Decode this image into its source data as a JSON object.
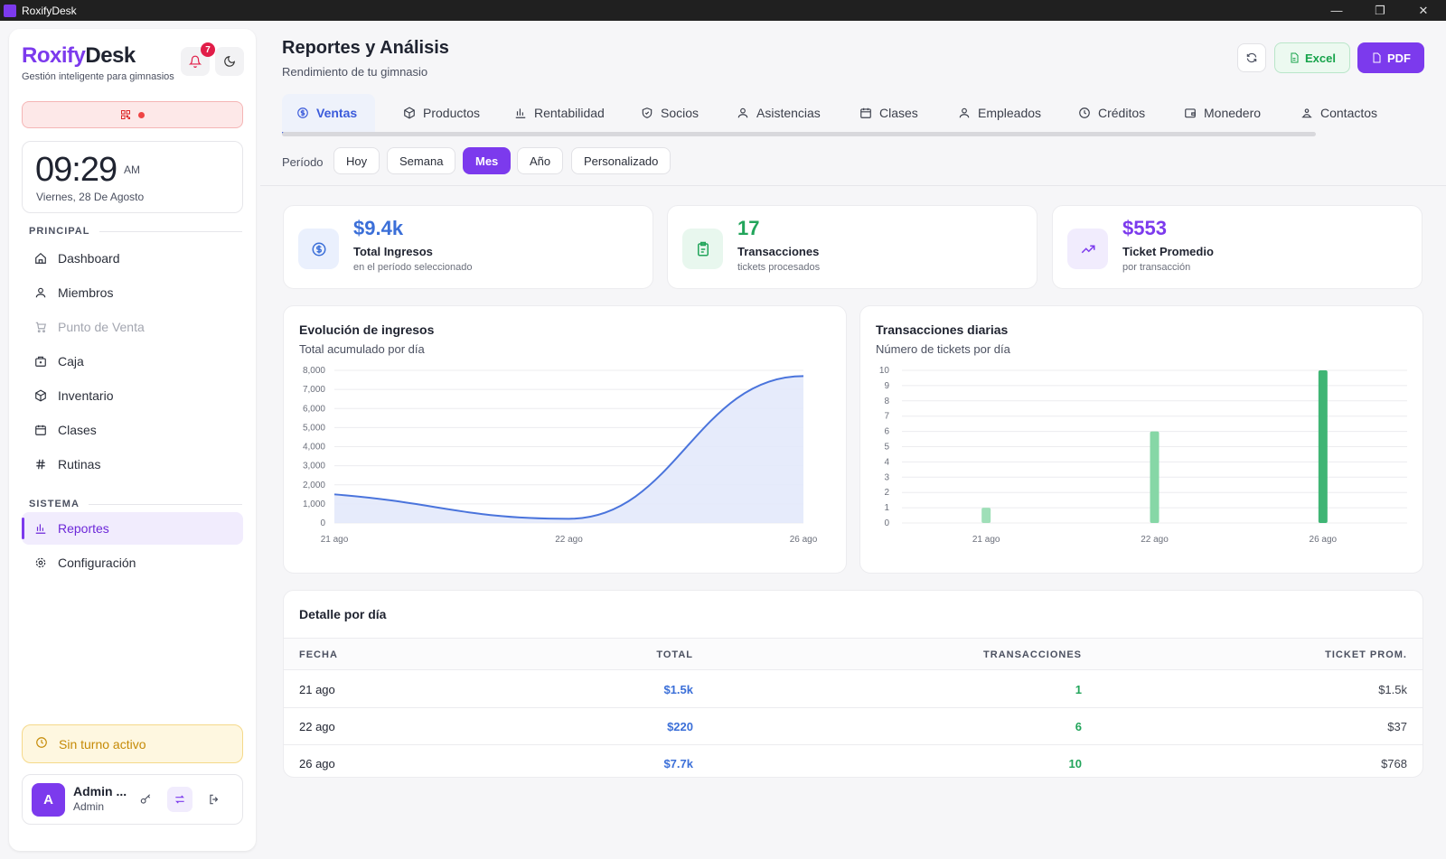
{
  "window": {
    "title": "RoxifyDesk",
    "controls": [
      "—",
      "❐",
      "✕"
    ]
  },
  "sidebar": {
    "brand_part1": "Roxify",
    "brand_part2": "Desk",
    "tagline": "Gestión inteligente para gimnasios",
    "notification_count": "7",
    "clock": {
      "time": "09:29",
      "ampm": "AM",
      "date": "Viernes, 28 De Agosto"
    },
    "section_principal": "PRINCIPAL",
    "section_sistema": "SISTEMA",
    "items": [
      {
        "label": "Dashboard",
        "icon": "home-icon"
      },
      {
        "label": "Miembros",
        "icon": "users-icon"
      },
      {
        "label": "Punto de Venta",
        "icon": "cart-icon"
      },
      {
        "label": "Caja",
        "icon": "cashbox-icon"
      },
      {
        "label": "Inventario",
        "icon": "box-icon"
      },
      {
        "label": "Clases",
        "icon": "calendar-icon"
      },
      {
        "label": "Rutinas",
        "icon": "hash-icon"
      },
      {
        "label": "Reportes",
        "icon": "chart-icon"
      },
      {
        "label": "Configuración",
        "icon": "gear-icon"
      }
    ],
    "shift_status": "Sin turno activo",
    "user": {
      "initial": "A",
      "name": "Admin ...",
      "role": "Admin"
    }
  },
  "header": {
    "title": "Reportes y Análisis",
    "subtitle": "Rendimiento de tu gimnasio",
    "excel_label": "Excel",
    "pdf_label": "PDF"
  },
  "tabs": [
    {
      "label": "Ventas",
      "icon": "dollar-icon"
    },
    {
      "label": "Productos",
      "icon": "box-icon"
    },
    {
      "label": "Rentabilidad",
      "icon": "bar-chart-icon"
    },
    {
      "label": "Socios",
      "icon": "shield-icon"
    },
    {
      "label": "Asistencias",
      "icon": "users-icon"
    },
    {
      "label": "Clases",
      "icon": "calendar-icon"
    },
    {
      "label": "Empleados",
      "icon": "users-icon"
    },
    {
      "label": "Créditos",
      "icon": "clock-icon"
    },
    {
      "label": "Monedero",
      "icon": "wallet-icon"
    },
    {
      "label": "Contactos",
      "icon": "contacts-icon"
    }
  ],
  "period": {
    "label": "Período",
    "options": [
      "Hoy",
      "Semana",
      "Mes",
      "Año",
      "Personalizado"
    ],
    "selected": "Mes"
  },
  "kpis": [
    {
      "value": "$9.4k",
      "label": "Total Ingresos",
      "desc": "en el período seleccionado",
      "color": "#3b6fd8",
      "bg": "#eaf0fd",
      "icon": "dollar-icon"
    },
    {
      "value": "17",
      "label": "Transacciones",
      "desc": "tickets procesados",
      "color": "#22a55b",
      "bg": "#e8f7ee",
      "icon": "clipboard-icon"
    },
    {
      "value": "$553",
      "label": "Ticket Promedio",
      "desc": "por transacción",
      "color": "#7c3aed",
      "bg": "#f1ecfd",
      "icon": "trending-up-icon"
    }
  ],
  "charts": {
    "income": {
      "title": "Evolución de ingresos",
      "subtitle": "Total acumulado por día"
    },
    "transactions": {
      "title": "Transacciones diarias",
      "subtitle": "Número de tickets por día"
    }
  },
  "chart_data": [
    {
      "type": "area",
      "title": "Evolución de ingresos",
      "x": [
        "21 ago",
        "22 ago",
        "26 ago"
      ],
      "y": [
        1500,
        220,
        7700
      ],
      "yticks": [
        "0",
        "1,000",
        "2,000",
        "3,000",
        "4,000",
        "5,000",
        "6,000",
        "7,000",
        "8,000"
      ],
      "ylim": [
        0,
        8000
      ],
      "color": "#4a74dc",
      "grid": true
    },
    {
      "type": "bar",
      "title": "Transacciones diarias",
      "categories": [
        "21 ago",
        "22 ago",
        "26 ago"
      ],
      "values": [
        1,
        6,
        10
      ],
      "yticks": [
        "0",
        "1",
        "2",
        "3",
        "4",
        "5",
        "6",
        "7",
        "8",
        "9",
        "10"
      ],
      "ylim": [
        0,
        10
      ],
      "colors": [
        "#9fdfb8",
        "#86d7a6",
        "#3fb574"
      ],
      "grid": true
    }
  ],
  "table": {
    "title": "Detalle por día",
    "columns": [
      "FECHA",
      "TOTAL",
      "TRANSACCIONES",
      "TICKET PROM."
    ],
    "rows": [
      [
        "21 ago",
        "$1.5k",
        "1",
        "$1.5k"
      ],
      [
        "22 ago",
        "$220",
        "6",
        "$37"
      ],
      [
        "26 ago",
        "$7.7k",
        "10",
        "$768"
      ]
    ]
  }
}
